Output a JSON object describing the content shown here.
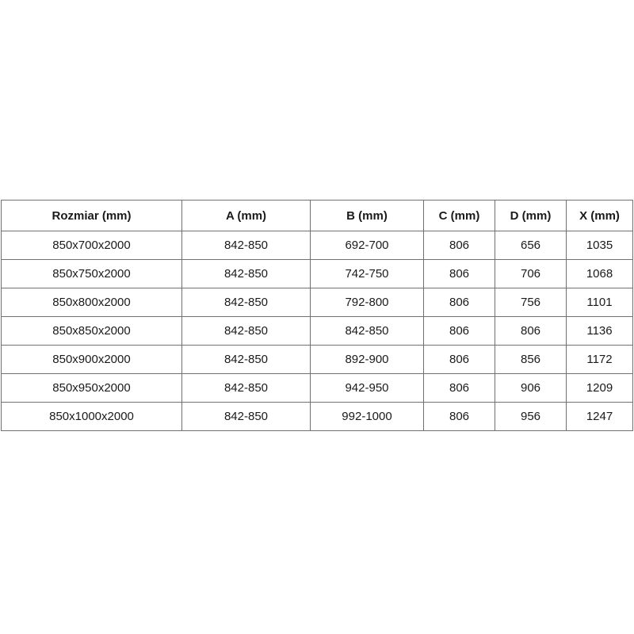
{
  "chart_data": {
    "type": "table",
    "columns": [
      "Rozmiar (mm)",
      "A (mm)",
      "B (mm)",
      "C (mm)",
      "D (mm)",
      "X (mm)"
    ],
    "rows": [
      [
        "850x700x2000",
        "842-850",
        "692-700",
        "806",
        "656",
        "1035"
      ],
      [
        "850x750x2000",
        "842-850",
        "742-750",
        "806",
        "706",
        "1068"
      ],
      [
        "850x800x2000",
        "842-850",
        "792-800",
        "806",
        "756",
        "1101"
      ],
      [
        "850x850x2000",
        "842-850",
        "842-850",
        "806",
        "806",
        "1136"
      ],
      [
        "850x900x2000",
        "842-850",
        "892-900",
        "806",
        "856",
        "1172"
      ],
      [
        "850x950x2000",
        "842-850",
        "942-950",
        "806",
        "906",
        "1209"
      ],
      [
        "850x1000x2000",
        "842-850",
        "992-1000",
        "806",
        "956",
        "1247"
      ]
    ],
    "layout": {
      "grid": "on",
      "header_bold": true,
      "cell_alignment": "center"
    }
  },
  "colors": {
    "border": "#707070",
    "text": "#1a1a1a",
    "background": "#ffffff"
  }
}
